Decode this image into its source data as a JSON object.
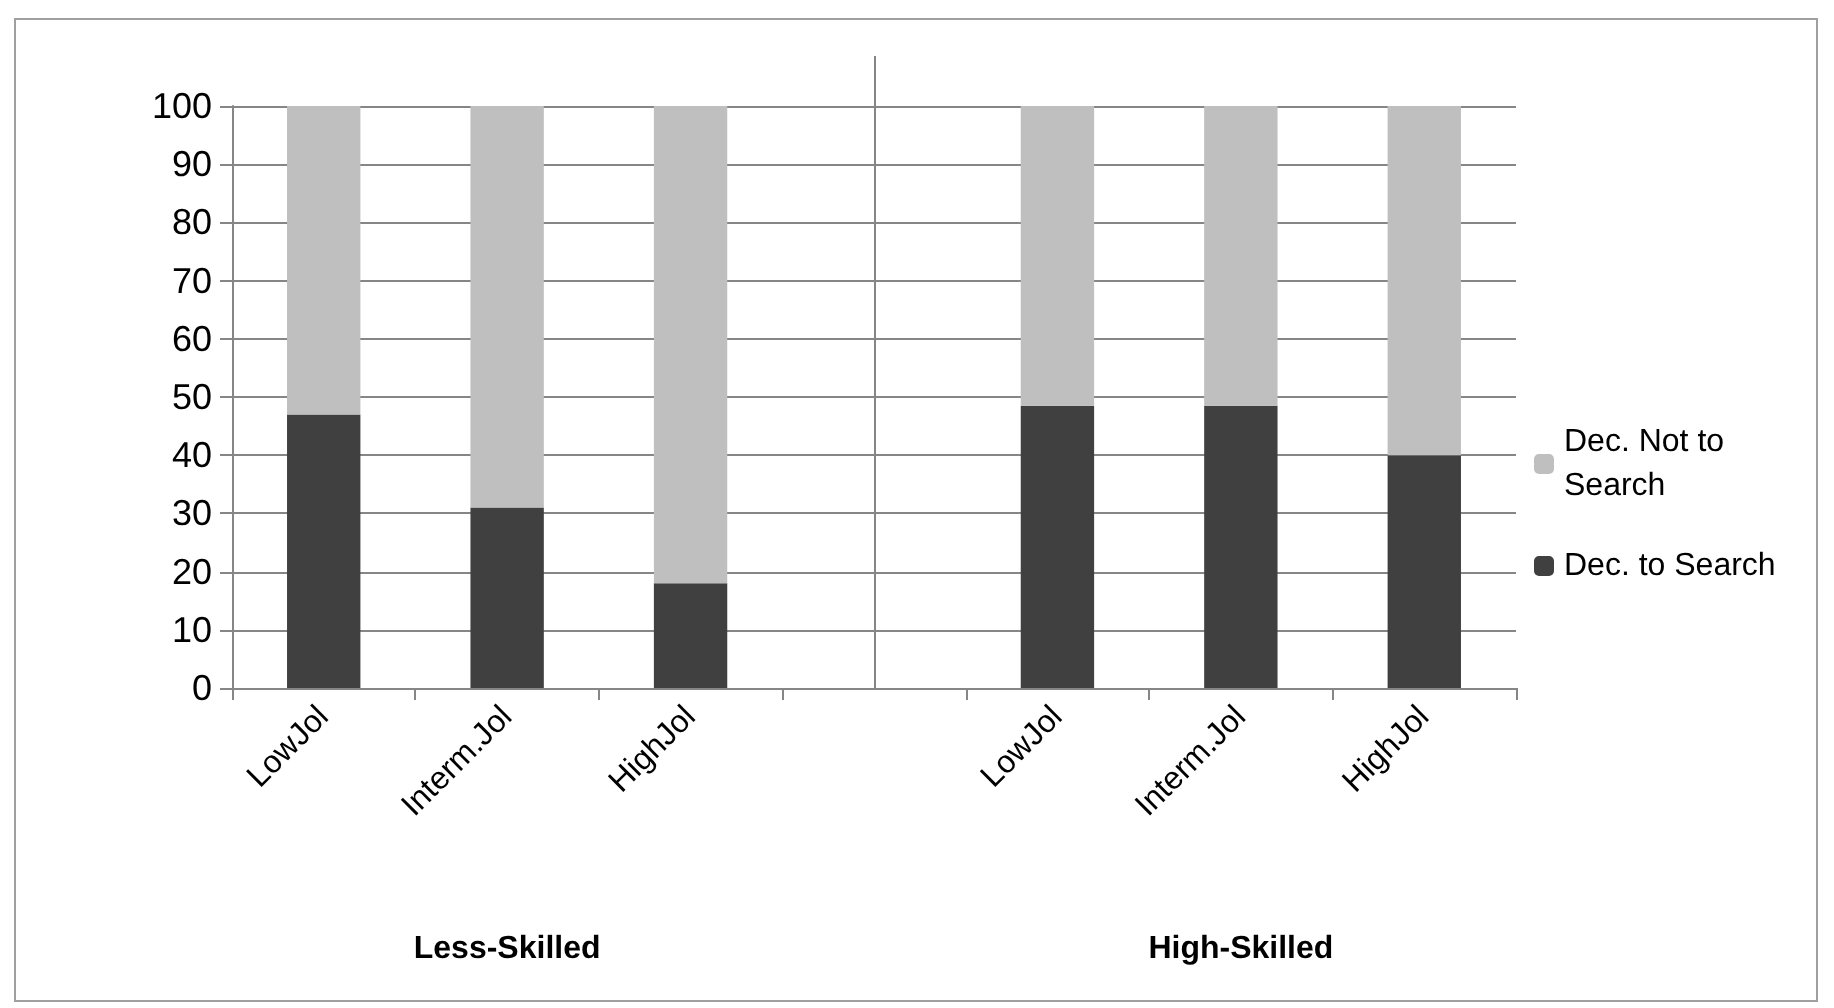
{
  "chart_data": {
    "type": "bar",
    "stacked": true,
    "categories": [
      "LowJol",
      "Interm.Jol",
      "HighJol",
      null,
      "LowJol",
      "Interm.Jol",
      "HighJol"
    ],
    "series": [
      {
        "name": "Dec. to Search",
        "color": "#404040",
        "values": [
          47,
          31,
          18,
          null,
          48.5,
          48.5,
          40
        ]
      },
      {
        "name": "Dec. Not to Search",
        "color": "#bfbfbf",
        "values": [
          53,
          69,
          82,
          null,
          51.5,
          51.5,
          60
        ]
      }
    ],
    "ylim": [
      0,
      100
    ],
    "yticks": [
      0,
      10,
      20,
      30,
      40,
      50,
      60,
      70,
      80,
      90,
      100
    ],
    "grid": "y",
    "legend": "right",
    "annotations": [
      "Less-Skilled",
      "High-Skilled"
    ]
  }
}
